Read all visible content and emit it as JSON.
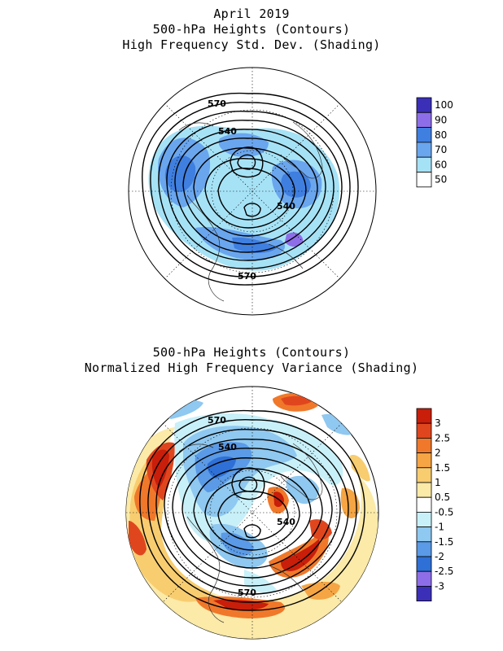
{
  "panel_top": {
    "title_lines": [
      "April 2019",
      "500-hPa Heights (Contours)",
      "High Frequency Std. Dev. (Shading)"
    ],
    "colorbar": {
      "labels": [
        "100",
        "90",
        "80",
        "70",
        "60",
        "50"
      ],
      "colors": [
        "#3b2fb8",
        "#8e6ee8",
        "#3f7fe0",
        "#6aa6ee",
        "#a6e2f6",
        "#ffffff"
      ]
    },
    "contour_labels": [
      "570",
      "540",
      "540",
      "570"
    ]
  },
  "panel_bottom": {
    "title_lines": [
      "500-hPa Heights (Contours)",
      "Normalized High Frequency Variance (Shading)"
    ],
    "colorbar": {
      "labels": [
        "3",
        "2.5",
        "2",
        "1.5",
        "1",
        "0.5",
        "-0.5",
        "-1",
        "-1.5",
        "-2",
        "-2.5",
        "-3"
      ],
      "colors": [
        "#c81e0a",
        "#e0461e",
        "#f0782a",
        "#f5a544",
        "#f8cd70",
        "#fbeaa8",
        "#ffffff",
        "#c8f0f8",
        "#8fc8f0",
        "#5a9ae6",
        "#2e70d6",
        "#8e6ee8",
        "#3b2fb8"
      ]
    },
    "contour_labels": [
      "570",
      "540",
      "540",
      "570"
    ]
  }
}
